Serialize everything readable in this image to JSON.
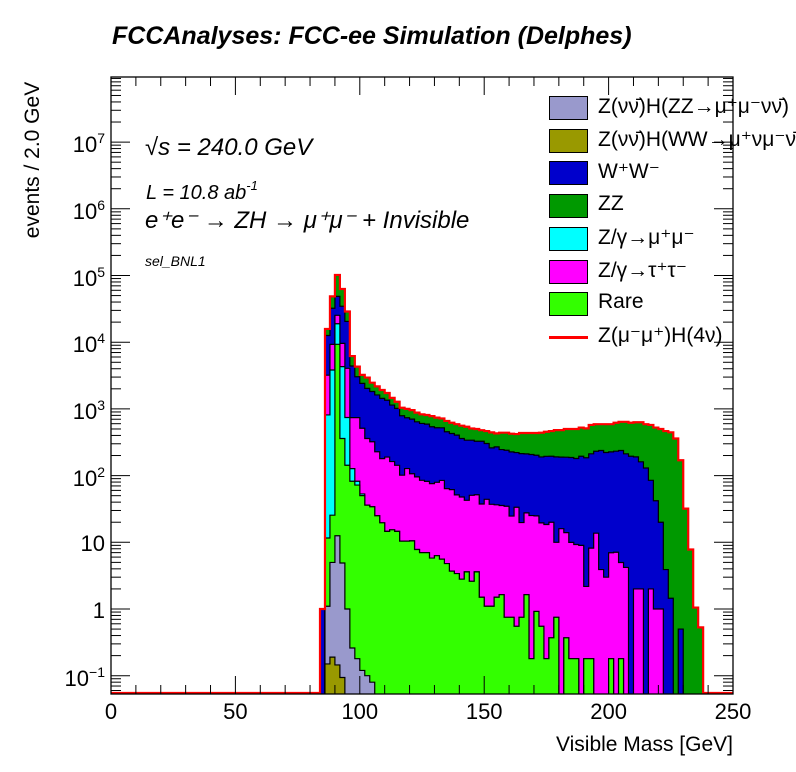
{
  "title": "FCCAnalyses: FCC-ee Simulation (Delphes)",
  "annotations": {
    "energy": "√s = 240.0 GeV",
    "lumi_prefix": "L = 10.8 ab",
    "lumi_exp": "-1",
    "process": "e⁺e⁻ → ZH → μ⁺μ⁻ + Invisible",
    "selection": "sel_BNL1"
  },
  "chart_data": {
    "type": "bar",
    "stacked": true,
    "histogram": true,
    "title": "FCCAnalyses: FCC-ee Simulation (Delphes)",
    "xlabel": "Visible Mass [GeV]",
    "ylabel": "events / 2.0 GeV",
    "xlim": [
      0,
      250
    ],
    "ylim": [
      0.053,
      95000000
    ],
    "yscale": "log",
    "bin_start": 84,
    "bin_width": 2,
    "x_ticks": [
      "0",
      "50",
      "100",
      "150",
      "200",
      "250"
    ],
    "y_ticks": [
      {
        "base": "10",
        "exp": "−1",
        "value": 0.1
      },
      {
        "base": "1",
        "exp": "",
        "value": 1
      },
      {
        "base": "10",
        "exp": "",
        "value": 10
      },
      {
        "base": "10",
        "exp": "2",
        "value": 100
      },
      {
        "base": "10",
        "exp": "3",
        "value": 1000
      },
      {
        "base": "10",
        "exp": "4",
        "value": 10000
      },
      {
        "base": "10",
        "exp": "5",
        "value": 100000
      },
      {
        "base": "10",
        "exp": "6",
        "value": 1000000
      },
      {
        "base": "10",
        "exp": "7",
        "value": 10000000
      }
    ],
    "legend_position": "top-right",
    "legend": [
      {
        "label": "Z(νν̄)H(ZZ→μ⁺μ⁻νν̄)",
        "color": "#9999cc",
        "style": "fill"
      },
      {
        "label": "Z(νν̄)H(WW→μ⁺νμ⁻ν̄)",
        "color": "#999900",
        "style": "fill"
      },
      {
        "label": "W⁺W⁻",
        "color": "#0000cc",
        "style": "fill"
      },
      {
        "label": "ZZ",
        "color": "#009900",
        "style": "fill"
      },
      {
        "label": "Z/γ→μ⁺μ⁻",
        "color": "#00ffff",
        "style": "fill"
      },
      {
        "label": "Z/γ→τ⁺τ⁻",
        "color": "#ff00ff",
        "style": "fill"
      },
      {
        "label": "Rare",
        "color": "#33ff00",
        "style": "fill"
      },
      {
        "label": "Z(μ⁻μ⁺)H(4ν)",
        "color": "#ff0000",
        "style": "line"
      }
    ],
    "stack_order_bottom_to_top": [
      "WWH",
      "ZZH",
      "Rare",
      "Zmumu",
      "Ztautau",
      "WW",
      "ZZ"
    ],
    "series": [
      {
        "key": "WWH",
        "name": "Z(νν̄)H(WW→μ⁺νμ⁻ν̄)",
        "color": "#999900",
        "values": [
          0,
          0.15,
          0.19,
          0.145,
          0.094,
          0,
          0,
          0,
          0,
          0,
          0,
          0,
          0,
          0,
          0,
          0,
          0,
          0,
          0,
          0,
          0,
          0,
          0,
          0,
          0,
          0,
          0,
          0,
          0,
          0,
          0,
          0,
          0,
          0,
          0,
          0,
          0,
          0,
          0,
          0,
          0,
          0,
          0,
          0,
          0,
          0,
          0,
          0,
          0,
          0,
          0,
          0,
          0,
          0,
          0,
          0,
          0,
          0,
          0,
          0,
          0,
          0,
          0,
          0,
          0,
          0,
          0,
          0,
          0,
          0,
          0,
          0,
          0,
          0,
          0,
          0,
          0,
          0
        ]
      },
      {
        "key": "ZZH",
        "name": "Z(νν̄)H(ZZ→μ⁺μ⁻νν̄)",
        "color": "#9999cc",
        "values": [
          0,
          0.95,
          4.8,
          12.4,
          4.8,
          1.0,
          0.26,
          0.18,
          0.12,
          0.1,
          0.08,
          0,
          0,
          0,
          0,
          0,
          0,
          0,
          0,
          0,
          0,
          0,
          0,
          0,
          0,
          0,
          0,
          0,
          0,
          0,
          0,
          0,
          0,
          0,
          0,
          0,
          0,
          0,
          0,
          0,
          0,
          0,
          0,
          0,
          0,
          0,
          0,
          0,
          0,
          0,
          0,
          0,
          0,
          0,
          0,
          0,
          0,
          0,
          0,
          0,
          0,
          0,
          0,
          0,
          0,
          0,
          0,
          0,
          0,
          0,
          0,
          0,
          0,
          0,
          0,
          0,
          0,
          0
        ]
      },
      {
        "key": "Rare",
        "name": "Rare",
        "color": "#33ff00",
        "values": [
          0,
          10.5,
          20.5,
          9290,
          355,
          142,
          82,
          72,
          50,
          36,
          34,
          25,
          19.6,
          14.6,
          15.4,
          14.6,
          10.4,
          10.4,
          10.5,
          7.8,
          7,
          7,
          5.8,
          6.3,
          5.6,
          4.8,
          3.7,
          3.4,
          2.8,
          3.6,
          2.6,
          3.6,
          1.5,
          1.1,
          1.1,
          1.5,
          1.64,
          0.75,
          0.75,
          0.55,
          0.75,
          1.64,
          0.18,
          0.92,
          0.55,
          0.18,
          0.37,
          0.75,
          0,
          0.37,
          0.18,
          0.18,
          0,
          0.18,
          0.18,
          0,
          0,
          0,
          0.18,
          0,
          0.18,
          0,
          0,
          0,
          0,
          0,
          0,
          0,
          0,
          0,
          0,
          0,
          0,
          0,
          0,
          0,
          0,
          0
        ]
      },
      {
        "key": "Zmumu",
        "name": "Z/γ→μ⁺μ⁻",
        "color": "#00ffff",
        "values": [
          0,
          800,
          3800,
          9600,
          3940,
          600,
          45,
          10,
          3,
          0,
          0,
          0,
          0,
          0,
          0,
          0,
          0,
          0,
          0,
          0,
          0,
          0,
          0,
          0,
          0,
          0,
          0,
          0,
          0,
          0,
          0,
          0,
          0,
          0,
          0,
          0,
          0,
          0,
          0,
          0,
          0,
          0,
          0,
          0,
          0,
          0,
          0,
          0,
          0,
          0,
          0,
          0,
          0,
          0,
          0,
          0,
          0,
          0,
          0,
          0,
          0,
          0,
          0,
          0,
          0,
          0,
          0,
          0,
          0,
          0,
          0,
          0,
          0,
          0,
          0,
          0,
          0,
          0
        ]
      },
      {
        "key": "Ztautau",
        "name": "Z/γ→τ⁺τ⁻",
        "color": "#ff00ff",
        "values": [
          0,
          2390,
          5460,
          6400,
          5300,
          3320,
          613,
          658,
          460,
          324,
          288,
          203,
          160,
          175,
          147,
          128,
          91,
          117,
          96,
          88,
          78,
          75,
          70,
          73,
          79,
          59,
          58,
          48,
          45,
          39,
          48,
          48,
          36,
          43,
          36,
          35,
          34,
          34,
          24,
          33,
          19,
          26,
          25,
          24,
          19,
          18.3,
          19.6,
          9.25,
          16,
          13.6,
          9.8,
          9.1,
          9,
          2.0,
          8.0,
          13.7,
          3.9,
          3.0,
          6.8,
          7.1,
          4.8,
          4.2,
          0,
          2,
          2,
          0,
          2,
          1,
          1,
          0,
          0,
          0,
          0,
          0,
          0,
          0,
          0,
          0
        ]
      },
      {
        "key": "WW",
        "name": "W⁺W⁻",
        "color": "#0000cc",
        "values": [
          1,
          9400,
          23000,
          23400,
          25000,
          16400,
          3660,
          2290,
          1900,
          1670,
          1500,
          1390,
          1260,
          1160,
          980,
          877,
          689,
          609,
          596,
          545,
          520,
          509,
          464,
          442,
          436,
          390,
          366,
          353,
          312,
          297,
          289,
          276,
          290,
          259,
          223,
          233,
          210,
          205,
          202,
          188,
          194,
          184,
          182,
          177,
          171,
          176,
          175,
          181,
          173,
          175,
          177,
          171,
          186,
          183,
          204,
          218,
          234,
          219,
          220,
          225,
          233,
          208,
          195,
          189,
          159,
          130,
          83,
          41,
          19,
          3.9,
          1.45,
          0,
          0.5,
          0,
          0,
          0,
          0,
          0
        ]
      },
      {
        "key": "ZZ",
        "name": "ZZ",
        "color": "#009900",
        "values": [
          0,
          3200,
          16400,
          53300,
          28100,
          8400,
          1800,
          1270,
          820,
          920,
          650,
          560,
          480,
          380,
          320,
          260,
          250,
          264,
          257,
          239,
          225,
          219,
          240,
          219,
          199,
          206,
          192,
          186,
          200,
          200,
          170,
          172,
          152,
          162,
          185,
          160,
          194,
          200,
          198,
          198,
          221,
          223,
          228,
          233,
          249,
          260,
          270,
          289,
          291,
          311,
          313,
          320,
          330,
          325,
          363,
          358,
          352,
          368,
          363,
          388,
          402,
          428,
          425,
          439,
          469,
          460,
          490,
          483,
          480,
          461,
          444,
          360,
          169.5,
          32,
          7.8,
          1.05,
          0.53,
          0
        ]
      }
    ],
    "signal": {
      "name": "Z(μ⁻μ⁺)H(4ν)",
      "color": "#ff0000",
      "style": "line",
      "drawn_on": "stack total"
    }
  }
}
